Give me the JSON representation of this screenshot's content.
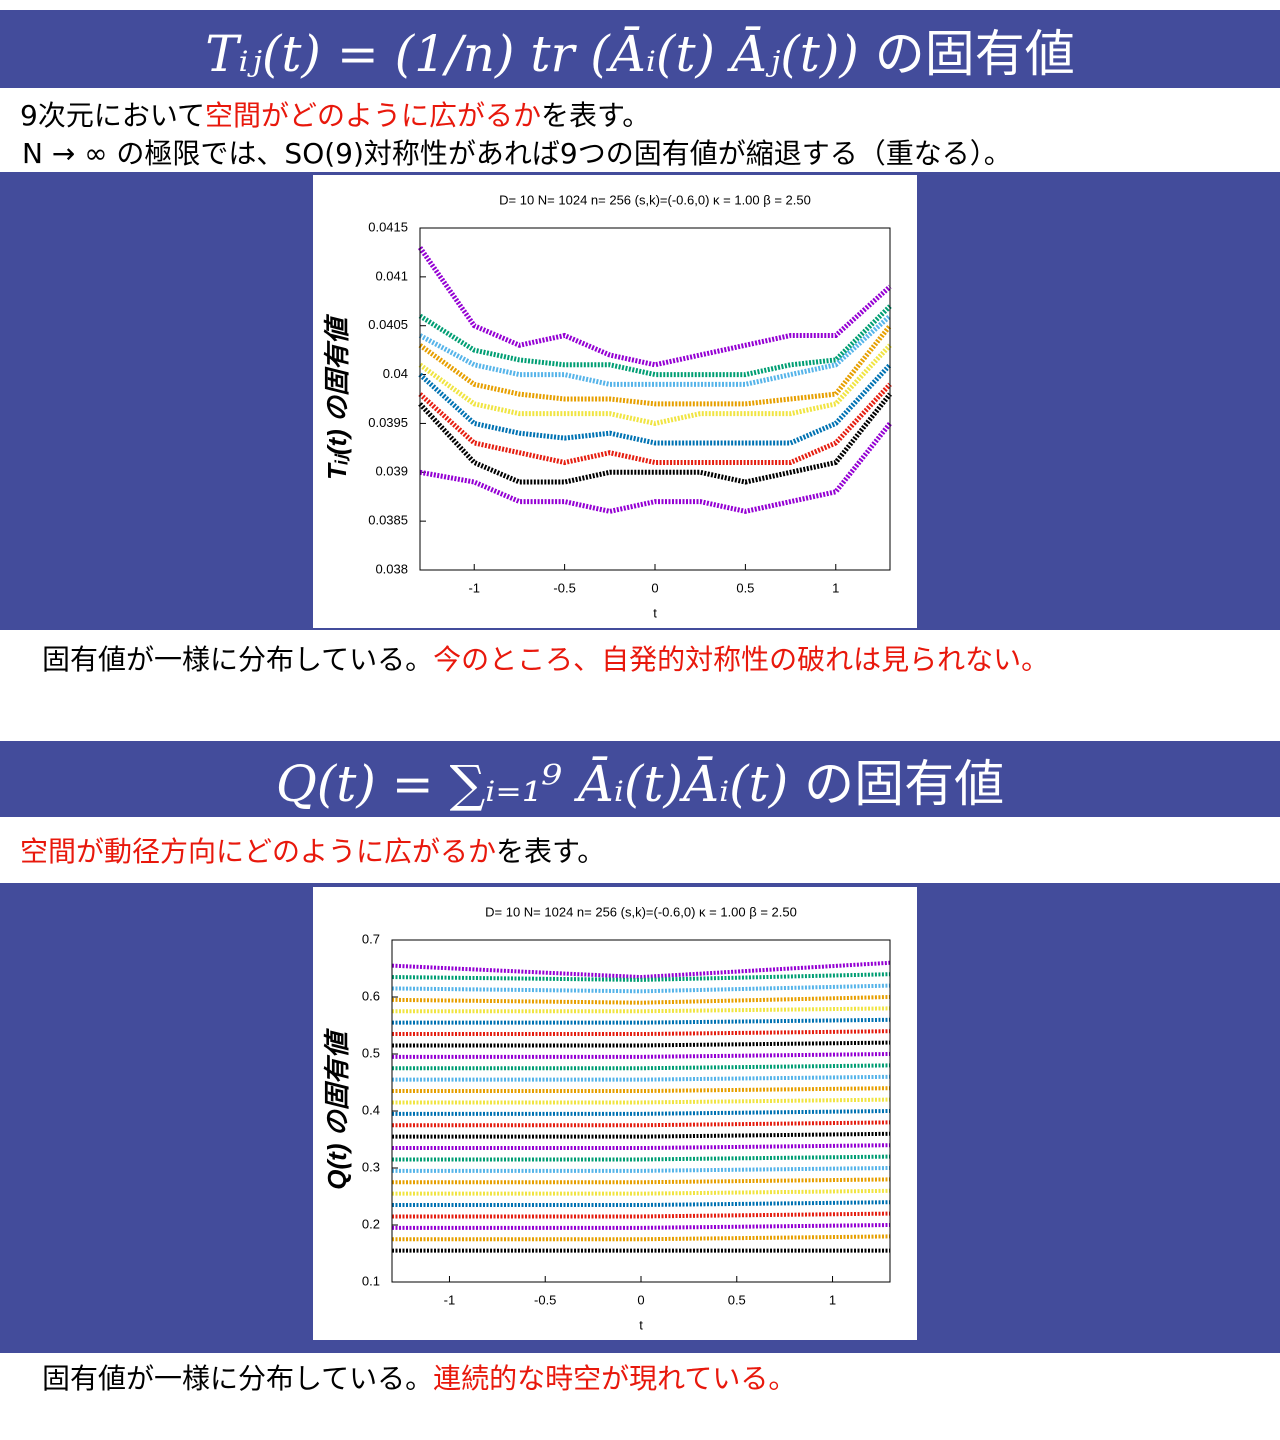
{
  "section1": {
    "header_formula": "Tᵢⱼ(t) = (1/n) tr (Āᵢ(t) Āⱼ(t))",
    "header_suffix": "の固有値",
    "desc1": [
      "9次元において",
      "空間がどのように広がるか",
      "を表す。"
    ],
    "desc2": "N → ∞ の極限では、SO(9)対称性があれば9つの固有値が縮退する（重なる）。",
    "caption": [
      "固有値が一様に分布している。",
      "今のところ、自発的対称性の破れは見られない。"
    ]
  },
  "section2": {
    "header_formula": "Q(t) = ∑ᵢ₌₁⁹ Āᵢ(t)Āᵢ(t)",
    "header_suffix": "の固有値",
    "desc": [
      "空間が動径方向にどのように広がるか",
      "を表す。"
    ],
    "caption": [
      "固有値が一様に分布している。",
      "連続的な時空が現れている。"
    ]
  },
  "chart_data": [
    {
      "type": "line",
      "title": "D= 10 N= 1024 n= 256 (s,k)=(-0.6,0)  κ = 1.00  β = 2.50",
      "x_label": "t",
      "y_label": "Tᵢⱼ(t) の固有値",
      "x": [
        -1.3,
        -1.0,
        -0.75,
        -0.5,
        -0.25,
        0,
        0.25,
        0.5,
        0.75,
        1.0,
        1.3
      ],
      "xlim": [
        -1.3,
        1.3
      ],
      "xticks": [
        -1,
        -0.5,
        0,
        0.5,
        1
      ],
      "ylim": [
        0.038,
        0.0415
      ],
      "yticks": [
        0.038,
        0.0385,
        0.039,
        0.0395,
        0.04,
        0.0405,
        0.041,
        0.0415
      ],
      "series": [
        {
          "color": "#9400d3",
          "values": [
            0.0413,
            0.0405,
            0.0403,
            0.0404,
            0.0402,
            0.0401,
            0.0402,
            0.0403,
            0.0404,
            0.0404,
            0.0409
          ]
        },
        {
          "color": "#009e73",
          "values": [
            0.0406,
            0.04025,
            0.04015,
            0.0401,
            0.0401,
            0.04,
            0.04,
            0.04,
            0.0401,
            0.04015,
            0.0407
          ]
        },
        {
          "color": "#56b4e9",
          "values": [
            0.0404,
            0.0401,
            0.04,
            0.04,
            0.0399,
            0.0399,
            0.0399,
            0.0399,
            0.04,
            0.0401,
            0.0406
          ]
        },
        {
          "color": "#e69f00",
          "values": [
            0.0403,
            0.0399,
            0.0398,
            0.03975,
            0.03975,
            0.0397,
            0.0397,
            0.0397,
            0.03975,
            0.0398,
            0.0405
          ]
        },
        {
          "color": "#f0e442",
          "values": [
            0.0401,
            0.0397,
            0.0396,
            0.0396,
            0.0396,
            0.0395,
            0.0396,
            0.0396,
            0.0396,
            0.0397,
            0.0403
          ]
        },
        {
          "color": "#0072b2",
          "values": [
            0.04,
            0.0395,
            0.0394,
            0.03935,
            0.0394,
            0.0393,
            0.0393,
            0.0393,
            0.0393,
            0.0395,
            0.0401
          ]
        },
        {
          "color": "#e51e10",
          "values": [
            0.0398,
            0.0393,
            0.0392,
            0.0391,
            0.0392,
            0.0391,
            0.0391,
            0.0391,
            0.0391,
            0.0393,
            0.0399
          ]
        },
        {
          "color": "#000000",
          "values": [
            0.0397,
            0.0391,
            0.0389,
            0.0389,
            0.039,
            0.039,
            0.039,
            0.0389,
            0.039,
            0.0391,
            0.0398
          ]
        },
        {
          "color": "#9400d3",
          "values": [
            0.039,
            0.0389,
            0.0387,
            0.0387,
            0.0386,
            0.0387,
            0.0387,
            0.0386,
            0.0387,
            0.0388,
            0.0395
          ]
        }
      ]
    },
    {
      "type": "line",
      "title": "D= 10 N= 1024 n= 256 (s,k)=(-0.6,0)  κ = 1.00  β = 2.50",
      "x_label": "t",
      "y_label": "Q(t) の固有値",
      "x": [
        -1.3,
        0,
        1.3
      ],
      "xlim": [
        -1.3,
        1.3
      ],
      "xticks": [
        -1,
        -0.5,
        0,
        0.5,
        1
      ],
      "ylim": [
        0.1,
        0.7
      ],
      "yticks": [
        0.1,
        0.2,
        0.3,
        0.4,
        0.5,
        0.6,
        0.7
      ],
      "series": [
        {
          "color": "#9400d3",
          "values": [
            0.655,
            0.635,
            0.66
          ]
        },
        {
          "color": "#009e73",
          "values": [
            0.635,
            0.63,
            0.64
          ]
        },
        {
          "color": "#56b4e9",
          "values": [
            0.615,
            0.61,
            0.62
          ]
        },
        {
          "color": "#e69f00",
          "values": [
            0.595,
            0.59,
            0.6
          ]
        },
        {
          "color": "#f0e442",
          "values": [
            0.575,
            0.575,
            0.58
          ]
        },
        {
          "color": "#0072b2",
          "values": [
            0.555,
            0.555,
            0.56
          ]
        },
        {
          "color": "#e51e10",
          "values": [
            0.535,
            0.535,
            0.54
          ]
        },
        {
          "color": "#000000",
          "values": [
            0.515,
            0.515,
            0.52
          ]
        },
        {
          "color": "#9400d3",
          "values": [
            0.495,
            0.495,
            0.5
          ]
        },
        {
          "color": "#009e73",
          "values": [
            0.475,
            0.475,
            0.48
          ]
        },
        {
          "color": "#56b4e9",
          "values": [
            0.455,
            0.455,
            0.46
          ]
        },
        {
          "color": "#e69f00",
          "values": [
            0.435,
            0.435,
            0.44
          ]
        },
        {
          "color": "#f0e442",
          "values": [
            0.415,
            0.415,
            0.42
          ]
        },
        {
          "color": "#0072b2",
          "values": [
            0.395,
            0.395,
            0.4
          ]
        },
        {
          "color": "#e51e10",
          "values": [
            0.375,
            0.375,
            0.38
          ]
        },
        {
          "color": "#000000",
          "values": [
            0.355,
            0.355,
            0.36
          ]
        },
        {
          "color": "#9400d3",
          "values": [
            0.335,
            0.335,
            0.34
          ]
        },
        {
          "color": "#009e73",
          "values": [
            0.315,
            0.315,
            0.32
          ]
        },
        {
          "color": "#56b4e9",
          "values": [
            0.295,
            0.295,
            0.3
          ]
        },
        {
          "color": "#e69f00",
          "values": [
            0.275,
            0.275,
            0.28
          ]
        },
        {
          "color": "#f0e442",
          "values": [
            0.255,
            0.255,
            0.26
          ]
        },
        {
          "color": "#0072b2",
          "values": [
            0.235,
            0.235,
            0.24
          ]
        },
        {
          "color": "#e51e10",
          "values": [
            0.215,
            0.215,
            0.22
          ]
        },
        {
          "color": "#9400d3",
          "values": [
            0.195,
            0.195,
            0.2
          ]
        },
        {
          "color": "#e69f00",
          "values": [
            0.175,
            0.175,
            0.18
          ]
        },
        {
          "color": "#000000",
          "values": [
            0.155,
            0.155,
            0.155
          ]
        }
      ]
    }
  ]
}
